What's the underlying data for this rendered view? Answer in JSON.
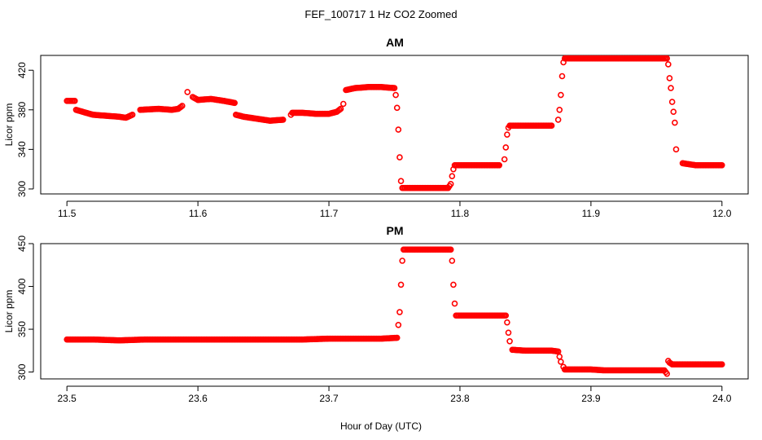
{
  "figure": {
    "suptitle": "FEF_100717  1 Hz CO2 Zoomed",
    "xlabel": "Hour of Day (UTC)"
  },
  "colors": {
    "points": "#ff0000",
    "axes": "#000000"
  },
  "chart_data": [
    {
      "type": "scatter",
      "title": "AM",
      "xlabel": "",
      "ylabel": "Licor ppm",
      "xlim": [
        11.48,
        12.02
      ],
      "ylim": [
        295,
        435
      ],
      "xticks": [
        11.5,
        11.6,
        11.7,
        11.8,
        11.9,
        12.0
      ],
      "xtick_labels": [
        "11.5",
        "11.6",
        "11.7",
        "11.8",
        "11.9",
        "12.0"
      ],
      "yticks": [
        300,
        340,
        380,
        420
      ],
      "ytick_labels": [
        "300",
        "340",
        "380",
        "420"
      ],
      "grid": false,
      "series": [
        {
          "marker": "open-circle",
          "color": "#ff0000",
          "x": [
            11.5,
            11.506,
            11.507,
            11.512,
            11.52,
            11.53,
            11.54,
            11.545,
            11.55,
            11.556,
            11.57,
            11.58,
            11.585,
            11.588,
            11.592,
            11.596,
            11.6,
            11.61,
            11.62,
            11.628,
            11.629,
            11.635,
            11.645,
            11.655,
            11.665,
            11.671,
            11.672,
            11.68,
            11.69,
            11.7,
            11.706,
            11.709,
            11.711,
            11.713,
            11.72,
            11.73,
            11.74,
            11.75,
            11.751,
            11.752,
            11.753,
            11.754,
            11.755,
            11.756,
            11.76,
            11.77,
            11.78,
            11.791,
            11.793,
            11.794,
            11.795,
            11.796,
            11.8,
            11.81,
            11.82,
            11.83,
            11.834,
            11.835,
            11.836,
            11.837,
            11.838,
            11.85,
            11.86,
            11.87,
            11.875,
            11.876,
            11.877,
            11.878,
            11.879,
            11.88,
            11.9,
            11.92,
            11.94,
            11.955,
            11.958,
            11.959,
            11.96,
            11.961,
            11.962,
            11.963,
            11.964,
            11.965,
            11.97,
            11.98,
            11.99,
            12.0
          ],
          "y": [
            389,
            389,
            380,
            378,
            375,
            374,
            373,
            372,
            375,
            380,
            381,
            380,
            381,
            384,
            398,
            393,
            390,
            391,
            389,
            387,
            375,
            373,
            371,
            369,
            370,
            375,
            377,
            377,
            376,
            376,
            378,
            381,
            386,
            400,
            402,
            403,
            403,
            402,
            395,
            382,
            360,
            332,
            308,
            301,
            301,
            301,
            301,
            301,
            305,
            313,
            320,
            324,
            324,
            324,
            324,
            324,
            330,
            342,
            355,
            362,
            364,
            364,
            364,
            364,
            370,
            380,
            395,
            414,
            428,
            432,
            432,
            432,
            432,
            432,
            432,
            426,
            412,
            402,
            388,
            378,
            367,
            340,
            326,
            324,
            324,
            324
          ]
        }
      ]
    },
    {
      "type": "scatter",
      "title": "PM",
      "xlabel": "Hour of Day (UTC)",
      "ylabel": "Licor ppm",
      "xlim": [
        23.48,
        24.02
      ],
      "ylim": [
        292,
        450
      ],
      "xticks": [
        23.5,
        23.6,
        23.7,
        23.8,
        23.9,
        24.0
      ],
      "xtick_labels": [
        "23.5",
        "23.6",
        "23.7",
        "23.8",
        "23.9",
        "24.0"
      ],
      "yticks": [
        300,
        350,
        400,
        450
      ],
      "ytick_labels": [
        "300",
        "350",
        "400",
        "450"
      ],
      "grid": false,
      "series": [
        {
          "marker": "open-circle",
          "color": "#ff0000",
          "x": [
            23.5,
            23.52,
            23.54,
            23.56,
            23.58,
            23.6,
            23.62,
            23.64,
            23.66,
            23.68,
            23.7,
            23.72,
            23.74,
            23.752,
            23.753,
            23.754,
            23.755,
            23.756,
            23.757,
            23.76,
            23.77,
            23.78,
            23.793,
            23.794,
            23.795,
            23.796,
            23.797,
            23.8,
            23.81,
            23.82,
            23.83,
            23.835,
            23.836,
            23.837,
            23.838,
            23.84,
            23.85,
            23.86,
            23.87,
            23.875,
            23.876,
            23.877,
            23.879,
            23.88,
            23.89,
            23.9,
            23.91,
            23.92,
            23.93,
            23.94,
            23.95,
            23.956,
            23.958,
            23.959,
            23.96,
            23.962,
            23.97,
            23.98,
            23.99,
            24.0
          ],
          "y": [
            338,
            338,
            337,
            338,
            338,
            338,
            338,
            338,
            338,
            338,
            339,
            339,
            339,
            340,
            355,
            370,
            402,
            430,
            443,
            443,
            443,
            443,
            443,
            430,
            402,
            380,
            366,
            366,
            366,
            366,
            366,
            366,
            358,
            346,
            336,
            326,
            325,
            325,
            325,
            324,
            318,
            312,
            306,
            303,
            303,
            303,
            302,
            302,
            302,
            302,
            302,
            302,
            298,
            313,
            311,
            309,
            309,
            309,
            309,
            309
          ]
        }
      ]
    }
  ]
}
